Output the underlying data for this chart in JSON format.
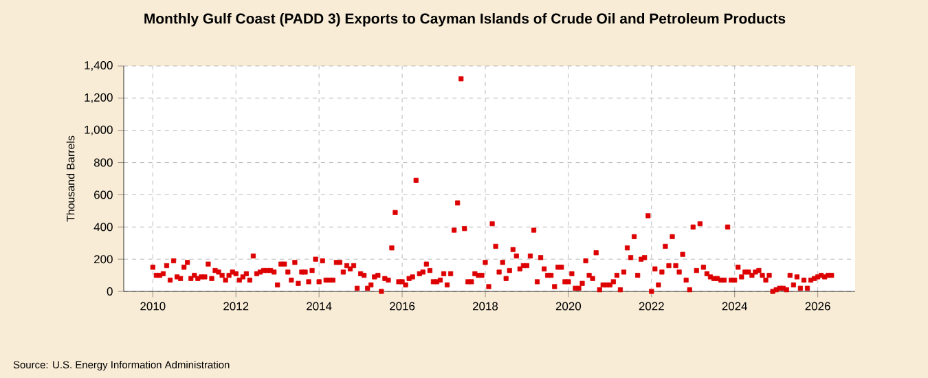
{
  "chart_data": {
    "type": "scatter",
    "title": "Monthly Gulf Coast (PADD 3) Exports to Cayman Islands of Crude Oil and Petroleum Products",
    "ylabel": "Thousand Barrels",
    "annotations": [
      "Source: U.S. Energy Information Administration"
    ],
    "x": [
      2010.0,
      2010.083,
      2010.167,
      2010.25,
      2010.333,
      2010.417,
      2010.5,
      2010.583,
      2010.667,
      2010.75,
      2010.833,
      2010.917,
      2011.0,
      2011.083,
      2011.167,
      2011.25,
      2011.333,
      2011.417,
      2011.5,
      2011.583,
      2011.667,
      2011.75,
      2011.833,
      2011.917,
      2012.0,
      2012.083,
      2012.167,
      2012.25,
      2012.333,
      2012.417,
      2012.5,
      2012.583,
      2012.667,
      2012.75,
      2012.833,
      2012.917,
      2013.0,
      2013.083,
      2013.167,
      2013.25,
      2013.333,
      2013.417,
      2013.5,
      2013.583,
      2013.667,
      2013.75,
      2013.833,
      2013.917,
      2014.0,
      2014.083,
      2014.167,
      2014.25,
      2014.333,
      2014.417,
      2014.5,
      2014.583,
      2014.667,
      2014.75,
      2014.833,
      2014.917,
      2015.0,
      2015.083,
      2015.167,
      2015.25,
      2015.333,
      2015.417,
      2015.5,
      2015.583,
      2015.667,
      2015.75,
      2015.833,
      2015.917,
      2016.0,
      2016.083,
      2016.167,
      2016.25,
      2016.333,
      2016.417,
      2016.5,
      2016.583,
      2016.667,
      2016.75,
      2016.833,
      2016.917,
      2017.0,
      2017.083,
      2017.167,
      2017.25,
      2017.333,
      2017.417,
      2017.5,
      2017.583,
      2017.667,
      2017.75,
      2017.833,
      2017.917,
      2018.0,
      2018.083,
      2018.167,
      2018.25,
      2018.333,
      2018.417,
      2018.5,
      2018.583,
      2018.667,
      2018.75,
      2018.833,
      2018.917,
      2019.0,
      2019.083,
      2019.167,
      2019.25,
      2019.333,
      2019.417,
      2019.5,
      2019.583,
      2019.667,
      2019.75,
      2019.833,
      2019.917,
      2020.0,
      2020.083,
      2020.167,
      2020.25,
      2020.333,
      2020.417,
      2020.5,
      2020.583,
      2020.667,
      2020.75,
      2020.833,
      2020.917,
      2021.0,
      2021.083,
      2021.167,
      2021.25,
      2021.333,
      2021.417,
      2021.5,
      2021.583,
      2021.667,
      2021.75,
      2021.833,
      2021.917,
      2022.0,
      2022.083,
      2022.167,
      2022.25,
      2022.333,
      2022.417,
      2022.5,
      2022.583,
      2022.667,
      2022.75,
      2022.833,
      2022.917,
      2023.0,
      2023.083,
      2023.167,
      2023.25,
      2023.333,
      2023.417,
      2023.5,
      2023.583,
      2023.667,
      2023.75,
      2023.833,
      2023.917,
      2024.0,
      2024.083,
      2024.167,
      2024.25,
      2024.333,
      2024.417,
      2024.5,
      2024.583,
      2024.667,
      2024.75,
      2024.833,
      2024.917,
      2025.0,
      2025.083,
      2025.167,
      2025.25,
      2025.333,
      2025.417,
      2025.5,
      2025.583,
      2025.667,
      2025.75,
      2025.833,
      2025.917,
      2026.0,
      2026.083,
      2026.167,
      2026.25,
      2026.333
    ],
    "series": [
      {
        "color": "#dd0000",
        "values": [
          150,
          100,
          100,
          110,
          160,
          70,
          190,
          90,
          80,
          150,
          180,
          80,
          100,
          80,
          90,
          90,
          170,
          80,
          130,
          120,
          100,
          70,
          100,
          120,
          110,
          70,
          90,
          110,
          70,
          220,
          110,
          120,
          130,
          130,
          130,
          120,
          40,
          170,
          170,
          120,
          70,
          180,
          50,
          120,
          120,
          60,
          130,
          200,
          60,
          190,
          70,
          70,
          70,
          180,
          180,
          120,
          160,
          140,
          160,
          20,
          110,
          100,
          20,
          40,
          90,
          100,
          0,
          80,
          70,
          270,
          490,
          60,
          60,
          40,
          80,
          90,
          690,
          110,
          120,
          170,
          130,
          60,
          60,
          70,
          110,
          40,
          110,
          380,
          550,
          1320,
          390,
          60,
          60,
          110,
          100,
          100,
          180,
          30,
          420,
          280,
          120,
          180,
          80,
          130,
          260,
          220,
          140,
          160,
          160,
          220,
          380,
          60,
          210,
          140,
          100,
          100,
          30,
          150,
          150,
          60,
          60,
          110,
          20,
          20,
          50,
          190,
          100,
          80,
          240,
          10,
          40,
          40,
          40,
          60,
          100,
          10,
          120,
          270,
          210,
          340,
          100,
          200,
          210,
          470,
          0,
          140,
          40,
          120,
          280,
          160,
          340,
          160,
          120,
          230,
          70,
          10,
          400,
          130,
          420,
          150,
          110,
          90,
          80,
          80,
          70,
          70,
          400,
          70,
          70,
          150,
          90,
          120,
          120,
          100,
          120,
          130,
          100,
          70,
          100,
          0,
          10,
          20,
          20,
          10,
          100,
          40,
          90,
          20,
          70,
          20,
          70,
          80,
          90,
          100,
          90,
          100,
          100
        ]
      }
    ],
    "xlim": [
      2009.3,
      2026.9
    ],
    "xticks": [
      2010,
      2012,
      2014,
      2016,
      2018,
      2020,
      2022,
      2024,
      2026
    ],
    "ylim": [
      0,
      1400
    ],
    "yticks": [
      0,
      {
        "value": 200,
        "label": "200"
      },
      {
        "value": 400,
        "label": "400"
      },
      {
        "value": 600,
        "label": "600"
      },
      {
        "value": 800,
        "label": "800"
      },
      {
        "value": 1000,
        "label": "1,000"
      },
      {
        "value": 1200,
        "label": "1,200"
      },
      {
        "value": 1400,
        "label": "1,400"
      }
    ],
    "grid": true,
    "marker": "square"
  }
}
